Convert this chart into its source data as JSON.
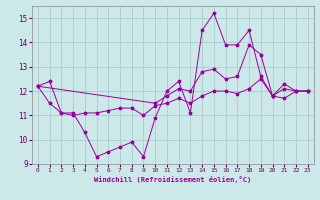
{
  "background_color": "#cce8e8",
  "grid_color": "#aacccc",
  "line_color": "#990099",
  "x_label": "Windchill (Refroidissement éolien,°C)",
  "xlim": [
    -0.5,
    23.5
  ],
  "ylim": [
    9,
    15.5
  ],
  "yticks": [
    9,
    10,
    11,
    12,
    13,
    14,
    15
  ],
  "xticks": [
    0,
    1,
    2,
    3,
    4,
    5,
    6,
    7,
    8,
    9,
    10,
    11,
    12,
    13,
    14,
    15,
    16,
    17,
    18,
    19,
    20,
    21,
    22,
    23
  ],
  "series": [
    {
      "x": [
        0,
        1,
        2,
        3,
        4,
        5,
        6,
        7,
        8,
        9,
        10,
        11,
        12,
        13,
        14,
        15,
        16,
        17,
        18,
        19,
        20,
        21,
        22,
        23
      ],
      "y": [
        12.2,
        12.4,
        11.1,
        11.1,
        10.3,
        9.3,
        9.5,
        9.7,
        9.9,
        9.3,
        10.9,
        12.0,
        12.4,
        11.1,
        14.5,
        15.2,
        13.9,
        13.9,
        14.5,
        12.6,
        11.8,
        12.3,
        12.0,
        12.0
      ]
    },
    {
      "x": [
        0,
        10,
        11,
        12,
        13,
        14,
        15,
        16,
        17,
        18,
        19,
        20,
        21,
        22,
        23
      ],
      "y": [
        12.2,
        11.5,
        11.8,
        12.1,
        12.0,
        12.8,
        12.9,
        12.5,
        12.6,
        13.9,
        13.5,
        11.8,
        12.1,
        12.0,
        12.0
      ]
    },
    {
      "x": [
        0,
        1,
        2,
        3,
        4,
        5,
        6,
        7,
        8,
        9,
        10,
        11,
        12,
        13,
        14,
        15,
        16,
        17,
        18,
        19,
        20,
        21,
        22,
        23
      ],
      "y": [
        12.2,
        11.5,
        11.1,
        11.0,
        11.1,
        11.1,
        11.2,
        11.3,
        11.3,
        11.0,
        11.4,
        11.5,
        11.7,
        11.5,
        11.8,
        12.0,
        12.0,
        11.9,
        12.1,
        12.5,
        11.8,
        11.7,
        12.0,
        12.0
      ]
    }
  ]
}
